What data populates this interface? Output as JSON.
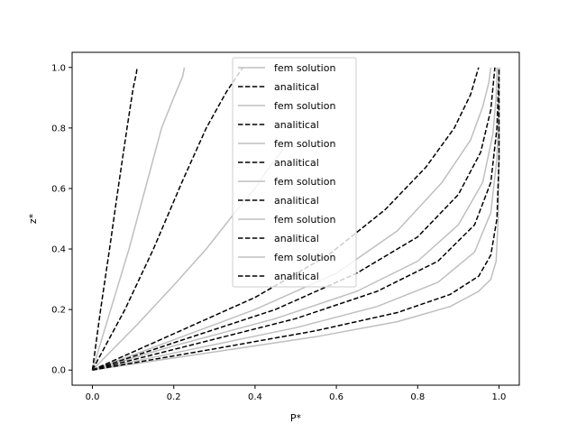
{
  "chart_data": {
    "type": "line",
    "title": "",
    "xlabel": "P*",
    "ylabel": "z*",
    "xlim": [
      -0.05,
      1.05
    ],
    "ylim": [
      -0.05,
      1.05
    ],
    "x_ticks": [
      "0.0",
      "0.2",
      "0.4",
      "0.6",
      "0.8",
      "1.0"
    ],
    "y_ticks": [
      "0.0",
      "0.2",
      "0.4",
      "0.6",
      "0.8",
      "1.0"
    ],
    "grid": false,
    "legend_position": "upper center",
    "colors": {
      "fem": "#bfbfbf",
      "analytical": "#000000"
    },
    "series": [
      {
        "name": "fem solution",
        "style": "solid",
        "points": [
          [
            0,
            0
          ],
          [
            0.045,
            0.2
          ],
          [
            0.09,
            0.4
          ],
          [
            0.13,
            0.6
          ],
          [
            0.17,
            0.8
          ],
          [
            0.2,
            0.9
          ],
          [
            0.222,
            0.97
          ],
          [
            0.226,
            1.0
          ]
        ]
      },
      {
        "name": "analitical",
        "style": "dashed",
        "points": [
          [
            0,
            0
          ],
          [
            0.02,
            0.2
          ],
          [
            0.042,
            0.4
          ],
          [
            0.063,
            0.6
          ],
          [
            0.085,
            0.8
          ],
          [
            0.1,
            0.93
          ],
          [
            0.108,
            0.98
          ],
          [
            0.11,
            1.0
          ]
        ]
      },
      {
        "name": "fem solution",
        "style": "solid",
        "points": [
          [
            0,
            0
          ],
          [
            0.11,
            0.15
          ],
          [
            0.2,
            0.28
          ],
          [
            0.28,
            0.4
          ],
          [
            0.35,
            0.52
          ],
          [
            0.4,
            0.6
          ],
          [
            0.44,
            0.68
          ],
          [
            0.47,
            0.73
          ]
        ]
      },
      {
        "name": "analitical",
        "style": "dashed",
        "points": [
          [
            0,
            0
          ],
          [
            0.08,
            0.2
          ],
          [
            0.15,
            0.4
          ],
          [
            0.22,
            0.62
          ],
          [
            0.28,
            0.8
          ],
          [
            0.33,
            0.92
          ],
          [
            0.36,
            0.98
          ],
          [
            0.37,
            1.0
          ]
        ]
      },
      {
        "name": "fem solution",
        "style": "solid",
        "points": [
          [
            0,
            0
          ],
          [
            0.2,
            0.1
          ],
          [
            0.4,
            0.2
          ],
          [
            0.6,
            0.32
          ],
          [
            0.75,
            0.46
          ],
          [
            0.86,
            0.62
          ],
          [
            0.93,
            0.76
          ],
          [
            0.96,
            0.87
          ],
          [
            0.975,
            0.95
          ],
          [
            0.98,
            1.0
          ]
        ]
      },
      {
        "name": "analitical",
        "style": "dashed",
        "points": [
          [
            0,
            0
          ],
          [
            0.2,
            0.12
          ],
          [
            0.4,
            0.24
          ],
          [
            0.58,
            0.38
          ],
          [
            0.72,
            0.53
          ],
          [
            0.82,
            0.67
          ],
          [
            0.89,
            0.8
          ],
          [
            0.93,
            0.91
          ],
          [
            0.95,
            1.0
          ]
        ]
      },
      {
        "name": "fem solution",
        "style": "solid",
        "points": [
          [
            0,
            0
          ],
          [
            0.2,
            0.08
          ],
          [
            0.45,
            0.17
          ],
          [
            0.65,
            0.26
          ],
          [
            0.8,
            0.36
          ],
          [
            0.9,
            0.48
          ],
          [
            0.96,
            0.62
          ],
          [
            0.985,
            0.78
          ],
          [
            0.993,
            0.9
          ],
          [
            0.995,
            1.0
          ]
        ]
      },
      {
        "name": "analitical",
        "style": "dashed",
        "points": [
          [
            0,
            0
          ],
          [
            0.2,
            0.09
          ],
          [
            0.45,
            0.2
          ],
          [
            0.65,
            0.32
          ],
          [
            0.8,
            0.44
          ],
          [
            0.9,
            0.58
          ],
          [
            0.955,
            0.72
          ],
          [
            0.98,
            0.86
          ],
          [
            0.99,
            1.0
          ]
        ]
      },
      {
        "name": "fem solution",
        "style": "solid",
        "points": [
          [
            0,
            0
          ],
          [
            0.25,
            0.07
          ],
          [
            0.5,
            0.14
          ],
          [
            0.7,
            0.21
          ],
          [
            0.85,
            0.29
          ],
          [
            0.94,
            0.39
          ],
          [
            0.98,
            0.52
          ],
          [
            0.995,
            0.7
          ],
          [
            0.999,
            0.85
          ],
          [
            1.0,
            1.0
          ]
        ]
      },
      {
        "name": "analitical",
        "style": "dashed",
        "points": [
          [
            0,
            0
          ],
          [
            0.25,
            0.085
          ],
          [
            0.5,
            0.17
          ],
          [
            0.7,
            0.26
          ],
          [
            0.85,
            0.36
          ],
          [
            0.94,
            0.48
          ],
          [
            0.98,
            0.62
          ],
          [
            0.995,
            0.8
          ],
          [
            1.0,
            1.0
          ]
        ]
      },
      {
        "name": "fem solution",
        "style": "solid",
        "points": [
          [
            0,
            0
          ],
          [
            0.3,
            0.06
          ],
          [
            0.55,
            0.11
          ],
          [
            0.75,
            0.16
          ],
          [
            0.88,
            0.21
          ],
          [
            0.95,
            0.26
          ],
          [
            0.98,
            0.3
          ],
          [
            0.993,
            0.36
          ],
          [
            0.998,
            0.5
          ],
          [
            1.0,
            0.7
          ],
          [
            1.0,
            1.0
          ]
        ]
      },
      {
        "name": "analitical",
        "style": "dashed",
        "points": [
          [
            0,
            0
          ],
          [
            0.3,
            0.07
          ],
          [
            0.55,
            0.13
          ],
          [
            0.75,
            0.19
          ],
          [
            0.88,
            0.25
          ],
          [
            0.95,
            0.31
          ],
          [
            0.98,
            0.38
          ],
          [
            0.995,
            0.5
          ],
          [
            1.0,
            0.7
          ],
          [
            1.0,
            1.0
          ]
        ]
      }
    ]
  }
}
